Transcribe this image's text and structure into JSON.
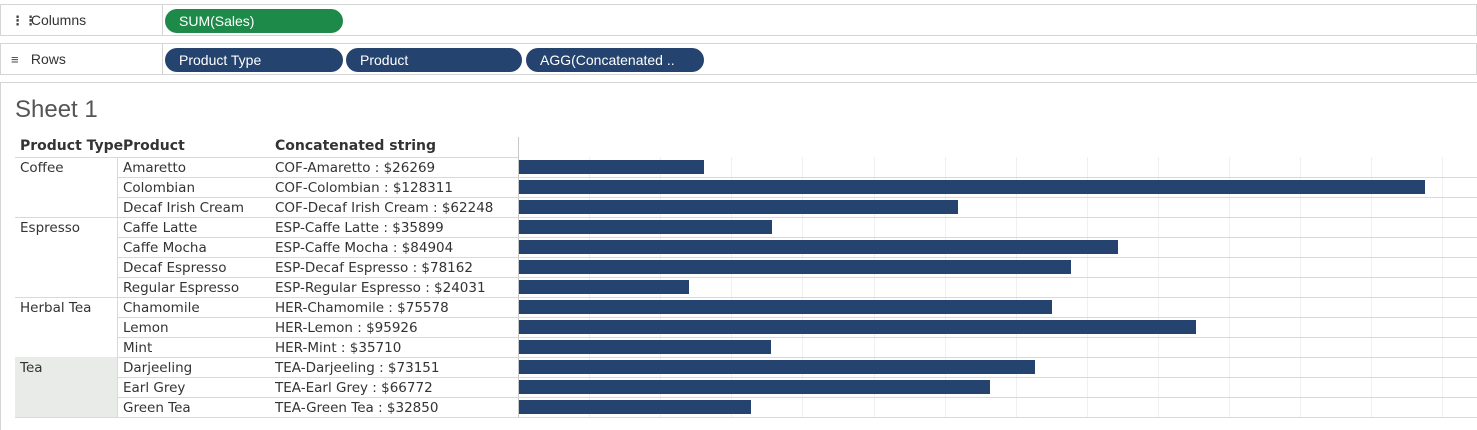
{
  "shelves": {
    "columns": {
      "icon": "columns-icon",
      "label": "Columns",
      "pills": [
        {
          "label": "SUM(Sales)",
          "color": "#1e8a4a"
        }
      ]
    },
    "rows": {
      "icon": "rows-icon",
      "label": "Rows",
      "pills": [
        {
          "label": "Product Type",
          "color": "#24436e"
        },
        {
          "label": "Product",
          "color": "#24436e"
        },
        {
          "label": "AGG(Concatenated ..",
          "color": "#24436e"
        }
      ]
    }
  },
  "sheet": {
    "title": "Sheet 1",
    "headers": [
      "Product Type",
      "Product",
      "Concatenated string"
    ],
    "bar_color": "#24436e",
    "highlight_color": "#e8ebe8"
  },
  "chart_data": {
    "type": "bar",
    "orientation": "horizontal",
    "xlim": [
      0,
      136000
    ],
    "groups": [
      {
        "product_type": "Coffee",
        "rows": [
          {
            "product": "Amaretto",
            "label": "COF-Amaretto : $26269",
            "value": 26269
          },
          {
            "product": "Colombian",
            "label": "COF-Colombian : $128311",
            "value": 128311
          },
          {
            "product": "Decaf Irish Cream",
            "label": "COF-Decaf Irish Cream : $62248",
            "value": 62248
          }
        ]
      },
      {
        "product_type": "Espresso",
        "rows": [
          {
            "product": "Caffe Latte",
            "label": "ESP-Caffe Latte : $35899",
            "value": 35899
          },
          {
            "product": "Caffe Mocha",
            "label": "ESP-Caffe Mocha : $84904",
            "value": 84904
          },
          {
            "product": "Decaf Espresso",
            "label": "ESP-Decaf Espresso : $78162",
            "value": 78162
          },
          {
            "product": "Regular Espresso",
            "label": "ESP-Regular Espresso : $24031",
            "value": 24031
          }
        ]
      },
      {
        "product_type": "Herbal Tea",
        "rows": [
          {
            "product": "Chamomile",
            "label": "HER-Chamomile : $75578",
            "value": 75578
          },
          {
            "product": "Lemon",
            "label": "HER-Lemon : $95926",
            "value": 95926
          },
          {
            "product": "Mint",
            "label": "HER-Mint : $35710",
            "value": 35710
          }
        ]
      },
      {
        "product_type": "Tea",
        "highlighted": true,
        "rows": [
          {
            "product": "Darjeeling",
            "label": "TEA-Darjeeling : $73151",
            "value": 73151
          },
          {
            "product": "Earl Grey",
            "label": "TEA-Earl Grey : $66772",
            "value": 66772
          },
          {
            "product": "Green Tea",
            "label": "TEA-Green Tea : $32850",
            "value": 32850
          }
        ]
      }
    ]
  }
}
